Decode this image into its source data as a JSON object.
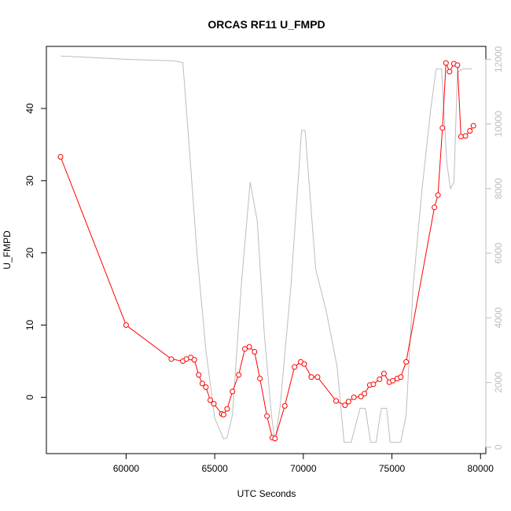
{
  "chart_data": {
    "type": "line",
    "title": "ORCAS RF11 U_FMPD",
    "xlabel": "UTC Seconds",
    "ylabel": "U_FMPD",
    "xlim": [
      55500,
      80300
    ],
    "ylim": [
      -7.8,
      48.6
    ],
    "y2lim": [
      -200,
      12400
    ],
    "x_ticks": [
      60000,
      65000,
      70000,
      75000,
      80000
    ],
    "y_ticks": [
      0,
      10,
      20,
      30,
      40
    ],
    "y2_ticks": [
      0,
      2000,
      4000,
      6000,
      8000,
      10000,
      12000
    ],
    "grid": false,
    "series": [
      {
        "color": "#ff0000",
        "style": "line-with-open-circles",
        "axis": "left",
        "x": [
          56300,
          60000,
          62550,
          63200,
          63400,
          63650,
          63850,
          64100,
          64300,
          64500,
          64750,
          64950,
          65400,
          65500,
          65700,
          66000,
          66350,
          66700,
          66950,
          67250,
          67550,
          67950,
          68250,
          68400,
          68950,
          69500,
          69850,
          70050,
          70450,
          70800,
          71850,
          72350,
          72550,
          72850,
          73250,
          73450,
          73750,
          73950,
          74300,
          74550,
          74850,
          75050,
          75300,
          75500,
          75800,
          77400,
          77600,
          77850,
          78050,
          78250,
          78500,
          78700,
          78900,
          79150,
          79400,
          79600
        ],
        "y": [
          33.3,
          10.0,
          5.3,
          5.0,
          5.3,
          5.5,
          5.2,
          3.1,
          1.9,
          1.4,
          -0.4,
          -0.9,
          -2.3,
          -2.4,
          -1.6,
          0.8,
          3.1,
          6.7,
          7.0,
          6.3,
          2.6,
          -2.6,
          -5.6,
          -5.7,
          -1.2,
          4.2,
          4.9,
          4.6,
          2.8,
          2.8,
          -0.5,
          -1.1,
          -0.6,
          0.0,
          0.1,
          0.5,
          1.7,
          1.8,
          2.5,
          3.3,
          2.1,
          2.3,
          2.6,
          2.8,
          4.9,
          26.3,
          28.0,
          37.3,
          46.3,
          45.1,
          46.2,
          46.0,
          36.1,
          36.2,
          36.9,
          37.6
        ]
      },
      {
        "color": "#bdbdbd",
        "style": "line",
        "axis": "right",
        "x": [
          56300,
          60000,
          62700,
          63200,
          63600,
          64000,
          64500,
          65000,
          65500,
          65700,
          66000,
          66500,
          67000,
          67400,
          67800,
          68200,
          68400,
          68700,
          69300,
          69900,
          70100,
          70700,
          71300,
          71900,
          72300,
          72700,
          73200,
          73500,
          73800,
          74100,
          74400,
          74700,
          74900,
          75200,
          75500,
          75800,
          76200,
          76700,
          77200,
          77500,
          77800,
          78100,
          78300,
          78500,
          78700,
          79000,
          79200,
          79500
        ],
        "y": [
          12100,
          12000,
          11950,
          11900,
          9000,
          6000,
          3000,
          900,
          250,
          300,
          1000,
          5000,
          8200,
          7000,
          3500,
          1000,
          150,
          1300,
          5000,
          9800,
          9800,
          5500,
          4200,
          2500,
          150,
          150,
          1200,
          1200,
          150,
          150,
          1200,
          1200,
          150,
          150,
          150,
          1000,
          5000,
          8000,
          10500,
          11700,
          11700,
          8800,
          8000,
          8200,
          11600,
          11700,
          11700,
          11700
        ]
      }
    ]
  }
}
